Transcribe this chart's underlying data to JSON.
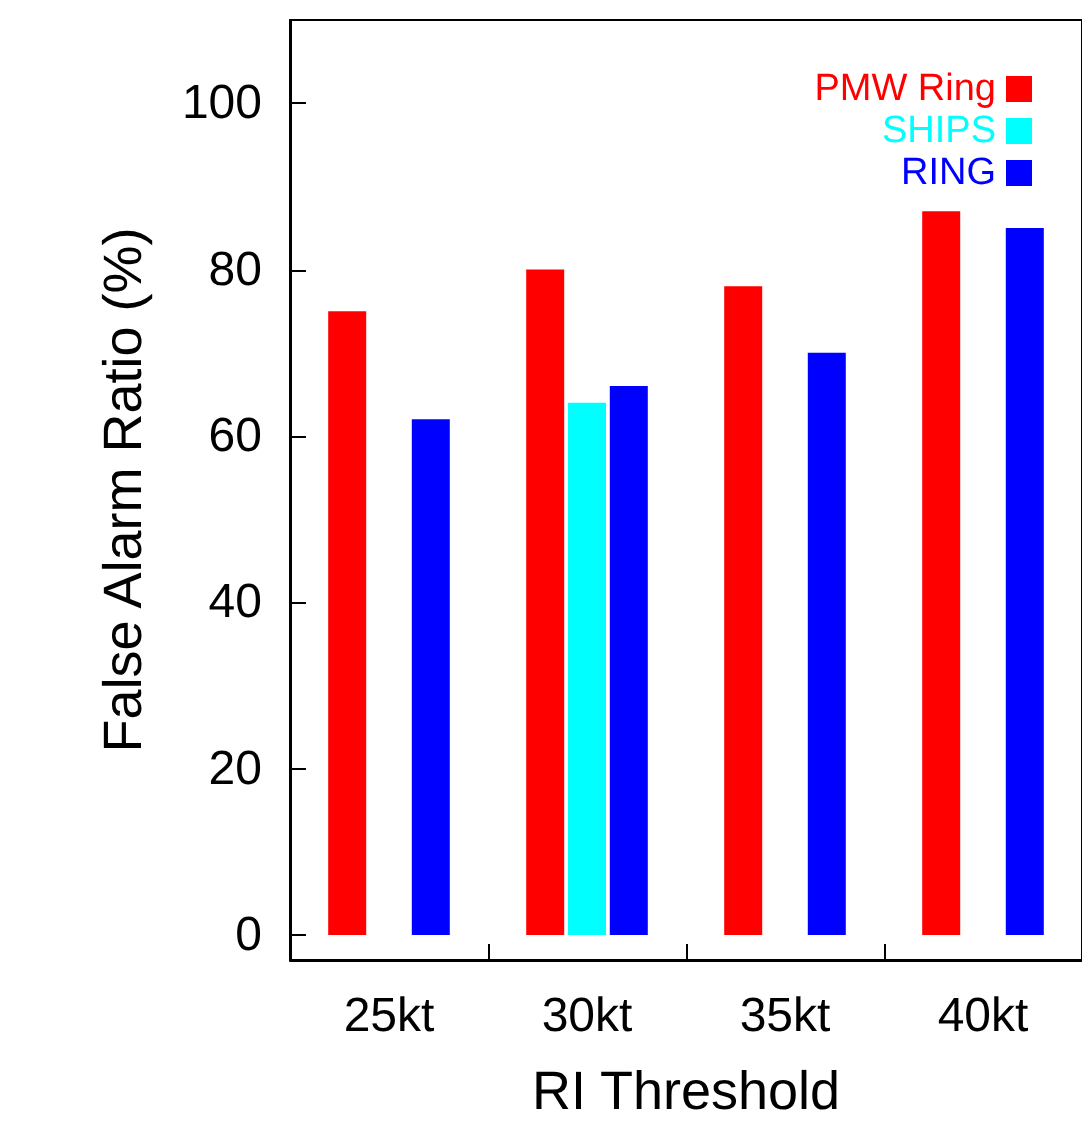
{
  "chart_data": {
    "type": "bar",
    "xlabel": "RI Threshold",
    "ylabel": "False Alarm Ratio (%)",
    "categories": [
      "25kt",
      "30kt",
      "35kt",
      "40kt"
    ],
    "series": [
      {
        "name": "PMW Ring",
        "color": "#ff0000",
        "values": [
          75,
          80,
          78,
          87
        ]
      },
      {
        "name": "SHIPS",
        "color": "#00ffff",
        "values": [
          null,
          64,
          null,
          null
        ]
      },
      {
        "name": "RING",
        "color": "#0000ff",
        "values": [
          62,
          66,
          70,
          85
        ]
      }
    ],
    "ylim": [
      -3,
      110
    ],
    "yticks": [
      0,
      20,
      40,
      60,
      80,
      100
    ],
    "grid": false,
    "legend": "top right"
  }
}
